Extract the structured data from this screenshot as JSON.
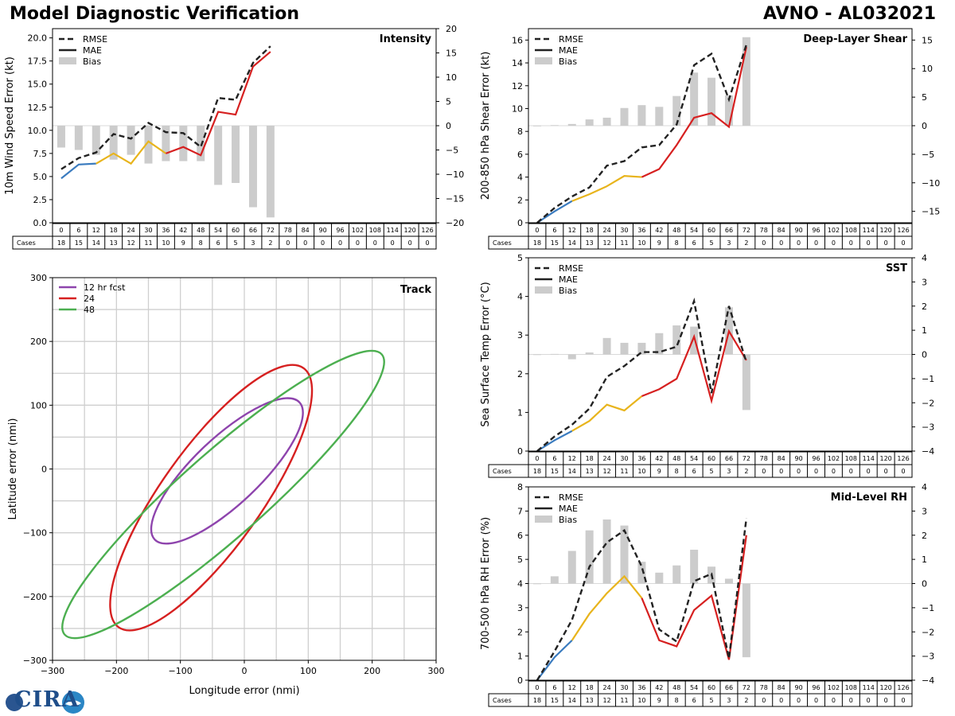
{
  "header": {
    "title": "Model Diagnostic Verification",
    "run": "AVNO - AL032021"
  },
  "legend_labels": {
    "rmse": "RMSE",
    "mae": "MAE",
    "bias": "Bias"
  },
  "cases_label": "Cases",
  "colors": {
    "early": "#3a7bbf",
    "mid": "#e8b41c",
    "late": "#d62020",
    "rmse": "#222222",
    "bias": "#cccccc",
    "track12": "#8e44ad",
    "track24": "#d62020",
    "track48": "#4caf50"
  },
  "logo_text": "CIRA",
  "chart_data": [
    {
      "id": "intensity",
      "type": "line+bar",
      "title": "Intensity",
      "ylabel": "10m Wind Speed Error (kt)",
      "ylim": [
        0,
        21
      ],
      "yticks": [
        0.0,
        2.5,
        5.0,
        7.5,
        10.0,
        12.5,
        15.0,
        17.5,
        20.0
      ],
      "ydec": 1,
      "y2lim": [
        -20,
        20
      ],
      "y2ticks": [
        -20,
        -15,
        -10,
        -5,
        0,
        5,
        10,
        15,
        20
      ],
      "categories": [
        0,
        6,
        12,
        18,
        24,
        30,
        36,
        42,
        48,
        54,
        60,
        66,
        72,
        78,
        84,
        90,
        96,
        102,
        108,
        114,
        120,
        126
      ],
      "cases": [
        18,
        15,
        14,
        13,
        12,
        11,
        10,
        9,
        8,
        6,
        5,
        3,
        2,
        0,
        0,
        0,
        0,
        0,
        0,
        0,
        0,
        0
      ],
      "rmse": [
        5.8,
        7.0,
        7.6,
        9.6,
        9.1,
        10.8,
        9.8,
        9.7,
        8.2,
        13.5,
        13.3,
        17.3,
        19.1
      ],
      "mae": [
        4.8,
        6.3,
        6.4,
        7.5,
        6.4,
        8.8,
        7.5,
        8.2,
        7.3,
        12.0,
        11.7,
        16.9,
        18.5
      ],
      "bias": [
        -4.5,
        -5.0,
        -6.0,
        -7.0,
        -6.0,
        -7.8,
        -7.3,
        -7.3,
        -7.3,
        -12.2,
        -11.8,
        -16.8,
        -18.9
      ]
    },
    {
      "id": "shear",
      "type": "line+bar",
      "title": "Deep-Layer Shear",
      "ylabel": "200-850 hPa Shear Error (kt)",
      "ylim": [
        0,
        17
      ],
      "yticks": [
        0,
        2,
        4,
        6,
        8,
        10,
        12,
        14,
        16
      ],
      "ydec": 0,
      "y2lim": [
        -17,
        17
      ],
      "y2ticks": [
        -15,
        -10,
        -5,
        0,
        5,
        10,
        15
      ],
      "categories": [
        0,
        6,
        12,
        18,
        24,
        30,
        36,
        42,
        48,
        54,
        60,
        66,
        72,
        78,
        84,
        90,
        96,
        102,
        108,
        114,
        120,
        126
      ],
      "cases": [
        18,
        15,
        14,
        13,
        12,
        11,
        10,
        9,
        8,
        6,
        5,
        3,
        2,
        0,
        0,
        0,
        0,
        0,
        0,
        0,
        0,
        0
      ],
      "rmse": [
        0.0,
        1.3,
        2.3,
        3.1,
        5.0,
        5.4,
        6.6,
        6.8,
        8.6,
        13.8,
        14.8,
        10.8,
        15.6
      ],
      "mae": [
        0.0,
        1.0,
        1.9,
        2.5,
        3.2,
        4.1,
        4.0,
        4.7,
        6.8,
        9.2,
        9.6,
        8.4,
        15.4
      ],
      "bias": [
        0.0,
        0.1,
        0.3,
        1.1,
        1.4,
        3.1,
        3.6,
        3.3,
        5.2,
        9.3,
        8.4,
        5.3,
        15.5
      ]
    },
    {
      "id": "sst",
      "type": "line+bar",
      "title": "SST",
      "ylabel": "Sea Surface Temp Error (°C)",
      "ylim": [
        0,
        5
      ],
      "yticks": [
        0,
        1,
        2,
        3,
        4,
        5
      ],
      "ydec": 0,
      "y2lim": [
        -4,
        4
      ],
      "y2ticks": [
        -4,
        -3,
        -2,
        -1,
        0,
        1,
        2,
        3,
        4
      ],
      "categories": [
        0,
        6,
        12,
        18,
        24,
        30,
        36,
        42,
        48,
        54,
        60,
        66,
        72,
        78,
        84,
        90,
        96,
        102,
        108,
        114,
        120,
        126
      ],
      "cases": [
        18,
        15,
        14,
        13,
        12,
        11,
        10,
        9,
        8,
        6,
        5,
        3,
        2,
        0,
        0,
        0,
        0,
        0,
        0,
        0,
        0,
        0
      ],
      "rmse": [
        0.0,
        0.38,
        0.68,
        1.1,
        1.92,
        2.2,
        2.56,
        2.56,
        2.7,
        3.88,
        1.5,
        3.75,
        2.3
      ],
      "mae": [
        0.0,
        0.28,
        0.52,
        0.78,
        1.2,
        1.05,
        1.42,
        1.6,
        1.87,
        2.96,
        1.3,
        3.1,
        2.35
      ],
      "bias": [
        0.0,
        0.02,
        -0.2,
        0.08,
        0.68,
        0.48,
        0.48,
        0.88,
        1.2,
        1.15,
        0.0,
        1.95,
        -2.3
      ]
    },
    {
      "id": "rh",
      "type": "line+bar",
      "title": "Mid-Level RH",
      "ylabel": "700-500 hPa RH Error (%)",
      "ylim": [
        0,
        8
      ],
      "yticks": [
        0,
        1,
        2,
        3,
        4,
        5,
        6,
        7,
        8
      ],
      "ydec": 0,
      "y2lim": [
        -4,
        4
      ],
      "y2ticks": [
        -4,
        -3,
        -2,
        -1,
        0,
        1,
        2,
        3,
        4
      ],
      "categories": [
        0,
        6,
        12,
        18,
        24,
        30,
        36,
        42,
        48,
        54,
        60,
        66,
        72,
        78,
        84,
        90,
        96,
        102,
        108,
        114,
        120,
        126
      ],
      "cases": [
        18,
        15,
        14,
        13,
        12,
        11,
        10,
        9,
        8,
        6,
        5,
        3,
        2,
        0,
        0,
        0,
        0,
        0,
        0,
        0,
        0,
        0
      ],
      "rmse": [
        0.0,
        1.2,
        2.5,
        4.7,
        5.7,
        6.2,
        4.7,
        2.1,
        1.6,
        4.1,
        4.4,
        0.9,
        6.7
      ],
      "mae": [
        0.0,
        0.95,
        1.65,
        2.75,
        3.6,
        4.3,
        3.4,
        1.65,
        1.4,
        2.9,
        3.5,
        0.85,
        6.0
      ],
      "bias": [
        0.0,
        0.3,
        1.35,
        2.2,
        2.65,
        2.4,
        0.9,
        0.45,
        0.75,
        1.4,
        0.7,
        0.2,
        -3.05
      ]
    },
    {
      "id": "track",
      "type": "ellipse",
      "title": "Track",
      "xlabel": "Longitude error (nmi)",
      "ylabel": "Latitude error (nmi)",
      "xlim": [
        -300,
        300
      ],
      "ylim": [
        -300,
        300
      ],
      "ticks": [
        -300,
        -200,
        -100,
        0,
        100,
        200,
        300
      ],
      "series": [
        {
          "name": "12 hr fcst",
          "cx": -27,
          "cy": -3,
          "rx": 156,
          "ry": 52,
          "angle": 43.5
        },
        {
          "name": "24",
          "cx": -52,
          "cy": -45,
          "rx": 249,
          "ry": 78,
          "angle": 54.5
        },
        {
          "name": "48",
          "cx": -33,
          "cy": -40,
          "rx": 331,
          "ry": 66,
          "angle": 41.5
        }
      ]
    }
  ]
}
